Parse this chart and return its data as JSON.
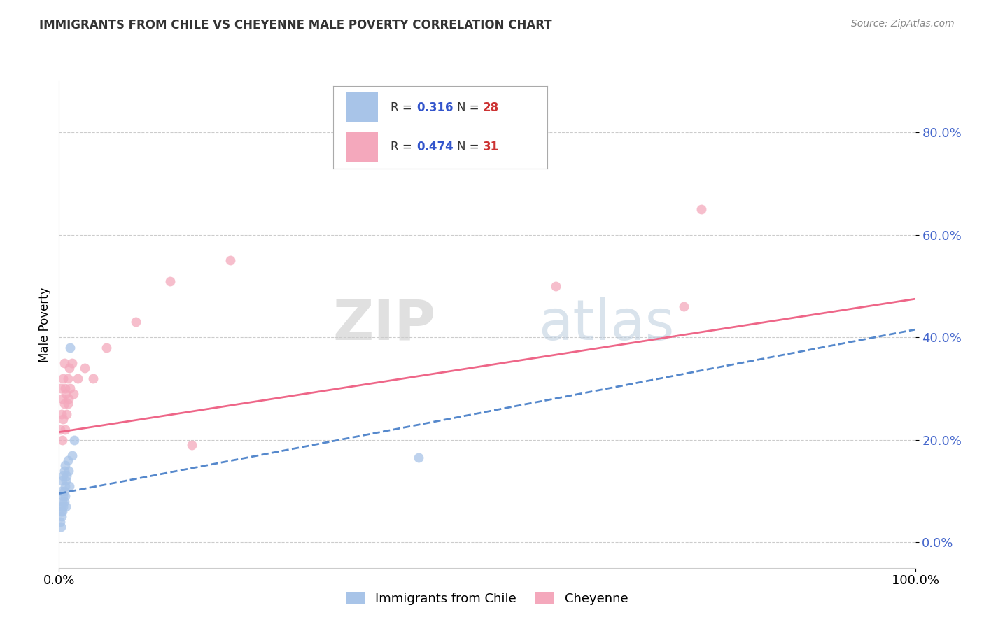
{
  "title": "IMMIGRANTS FROM CHILE VS CHEYENNE MALE POVERTY CORRELATION CHART",
  "source": "Source: ZipAtlas.com",
  "ylabel": "Male Poverty",
  "legend_label1": "Immigrants from Chile",
  "legend_label2": "Cheyenne",
  "r1": 0.316,
  "n1": 28,
  "r2": 0.474,
  "n2": 31,
  "color_blue": "#a8c4e8",
  "color_pink": "#f4a8bc",
  "color_blue_line": "#5588cc",
  "color_pink_line": "#ee6688",
  "watermark_zip": "ZIP",
  "watermark_atlas": "atlas",
  "xlim": [
    0.0,
    1.0
  ],
  "ylim": [
    -0.05,
    0.9
  ],
  "yticks": [
    0.0,
    0.2,
    0.4,
    0.6,
    0.8
  ],
  "ytick_labels": [
    "0.0%",
    "20.0%",
    "40.0%",
    "60.0%",
    "80.0%"
  ],
  "xtick_vals": [
    0.0,
    1.0
  ],
  "xtick_labels": [
    "0.0%",
    "100.0%"
  ],
  "blue_scatter_x": [
    0.001,
    0.002,
    0.002,
    0.003,
    0.003,
    0.003,
    0.004,
    0.004,
    0.004,
    0.005,
    0.005,
    0.005,
    0.006,
    0.006,
    0.006,
    0.007,
    0.007,
    0.007,
    0.008,
    0.008,
    0.009,
    0.01,
    0.011,
    0.012,
    0.013,
    0.015,
    0.018,
    0.42
  ],
  "blue_scatter_y": [
    0.04,
    0.06,
    0.03,
    0.07,
    0.05,
    0.1,
    0.08,
    0.12,
    0.06,
    0.09,
    0.13,
    0.07,
    0.1,
    0.14,
    0.08,
    0.11,
    0.15,
    0.09,
    0.12,
    0.07,
    0.13,
    0.16,
    0.14,
    0.11,
    0.38,
    0.17,
    0.2,
    0.165
  ],
  "pink_scatter_x": [
    0.001,
    0.002,
    0.003,
    0.004,
    0.004,
    0.005,
    0.005,
    0.006,
    0.006,
    0.007,
    0.007,
    0.008,
    0.009,
    0.01,
    0.01,
    0.011,
    0.012,
    0.013,
    0.015,
    0.017,
    0.022,
    0.03,
    0.04,
    0.055,
    0.09,
    0.13,
    0.2,
    0.155,
    0.58,
    0.73,
    0.75
  ],
  "pink_scatter_y": [
    0.22,
    0.3,
    0.25,
    0.28,
    0.2,
    0.32,
    0.24,
    0.27,
    0.35,
    0.3,
    0.22,
    0.29,
    0.25,
    0.32,
    0.27,
    0.28,
    0.34,
    0.3,
    0.35,
    0.29,
    0.32,
    0.34,
    0.32,
    0.38,
    0.43,
    0.51,
    0.55,
    0.19,
    0.5,
    0.46,
    0.65
  ],
  "blue_line_x0": 0.0,
  "blue_line_x1": 1.0,
  "blue_line_y0": 0.095,
  "blue_line_y1": 0.415,
  "pink_line_x0": 0.0,
  "pink_line_x1": 1.0,
  "pink_line_y0": 0.215,
  "pink_line_y1": 0.475
}
